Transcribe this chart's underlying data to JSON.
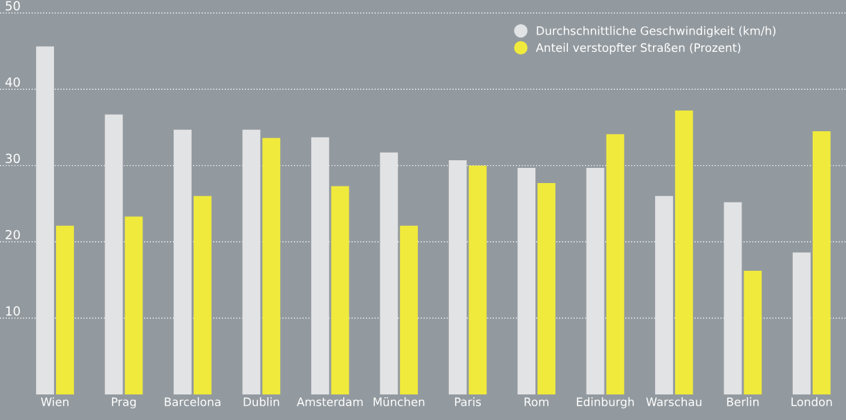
{
  "chart_data": {
    "type": "bar",
    "categories": [
      "Wien",
      "Prag",
      "Barcelona",
      "Dublin",
      "Amsterdam",
      "München",
      "Paris",
      "Rom",
      "Edinburgh",
      "Warschau",
      "Berlin",
      "London"
    ],
    "series": [
      {
        "name": "Durchschnittliche Geschwindigkeit (km/h)",
        "color": "#e2e3e5",
        "values": [
          45.6,
          36.7,
          34.7,
          34.7,
          33.7,
          31.7,
          30.7,
          29.7,
          29.7,
          26.0,
          25.2,
          18.6
        ]
      },
      {
        "name": "Anteil verstopfter Straßen (Prozent)",
        "color": "#f0ea3c",
        "values": [
          22.1,
          23.3,
          26.0,
          33.6,
          27.3,
          22.1,
          30.0,
          27.7,
          34.1,
          37.2,
          16.2,
          34.5
        ]
      }
    ],
    "ylim": [
      0,
      51.7
    ],
    "yticks": [
      10,
      20,
      30,
      40,
      50
    ],
    "grid": "y",
    "legend": "top right"
  }
}
